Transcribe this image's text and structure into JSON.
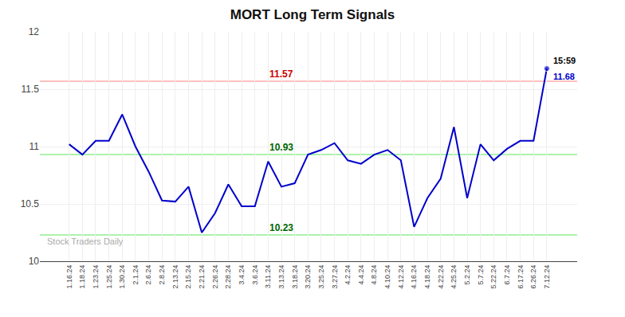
{
  "chart_data": {
    "type": "line",
    "title": "MORT Long Term Signals",
    "categories": [
      "1.16.24",
      "1.18.24",
      "1.23.24",
      "1.25.24",
      "1.30.24",
      "2.1.24",
      "2.6.24",
      "2.8.24",
      "2.13.24",
      "2.15.24",
      "2.21.24",
      "2.26.24",
      "2.28.24",
      "3.4.24",
      "3.6.24",
      "3.11.24",
      "3.13.24",
      "3.18.24",
      "3.20.24",
      "3.25.24",
      "3.27.24",
      "4.2.24",
      "4.4.24",
      "4.8.24",
      "4.10.24",
      "4.12.24",
      "4.16.24",
      "4.18.24",
      "4.22.24",
      "4.25.24",
      "5.2.24",
      "5.7.24",
      "5.22.24",
      "6.7.24",
      "6.17.24",
      "6.26.24",
      "7.12.24"
    ],
    "values": [
      11.02,
      10.93,
      11.05,
      11.05,
      11.28,
      11.0,
      10.78,
      10.53,
      10.52,
      10.65,
      10.25,
      10.42,
      10.67,
      10.48,
      10.48,
      10.87,
      10.65,
      10.68,
      10.93,
      10.97,
      11.03,
      10.88,
      10.85,
      10.93,
      10.97,
      10.88,
      10.3,
      10.55,
      10.72,
      11.17,
      10.55,
      11.02,
      10.88,
      10.98,
      11.05,
      11.05,
      11.68
    ],
    "color": "#0000cc",
    "ylim": [
      10,
      12
    ],
    "yticks": [
      10,
      10.5,
      11,
      11.5,
      12
    ],
    "grid": true,
    "reference_lines": [
      {
        "value": 11.57,
        "color": "#ffaaaa",
        "label": "11.57",
        "label_color": "#cc0000"
      },
      {
        "value": 10.93,
        "color": "#90ee90",
        "label": "10.93",
        "label_color": "#006600"
      },
      {
        "value": 10.23,
        "color": "#90ee90",
        "label": "10.23",
        "label_color": "#006600"
      }
    ],
    "annotations": [
      {
        "text": "15:59"
      },
      {
        "text": "11.68",
        "color": "#0000cc"
      }
    ],
    "watermark": "Stock Traders Daily"
  }
}
